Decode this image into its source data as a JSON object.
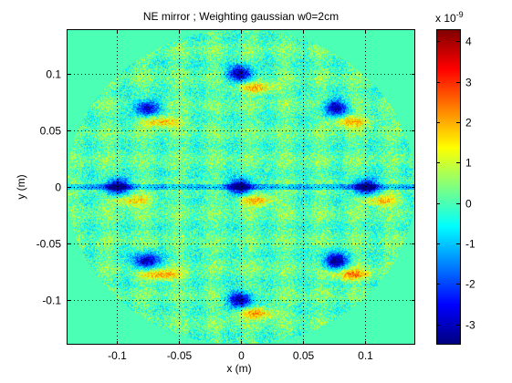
{
  "chart_data": {
    "type": "heatmap",
    "title": "NE mirror ; Weighting gaussian w0=2cm",
    "xlabel": "x (m)",
    "ylabel": "y (m)",
    "xlim": [
      -0.14,
      0.14
    ],
    "ylim": [
      -0.14,
      0.14
    ],
    "x_ticks": [
      -0.1,
      -0.05,
      0,
      0.05,
      0.1
    ],
    "x_tick_labels": [
      "-0.1",
      "-0.05",
      "0",
      "0.05",
      "0.1"
    ],
    "y_ticks": [
      -0.1,
      -0.05,
      0,
      0.05,
      0.1
    ],
    "y_tick_labels": [
      "-0.1",
      "-0.05",
      "0",
      "0.05",
      "0.1"
    ],
    "grid": true,
    "colormap": "jet",
    "colorbar": {
      "range": [
        -3.5,
        4.3
      ],
      "ticks": [
        -3,
        -2,
        -1,
        0,
        1,
        2,
        3,
        4
      ],
      "tick_labels": [
        "-3",
        "-2",
        "-1",
        "0",
        "1",
        "2",
        "3",
        "4"
      ],
      "exponent_label": "x 10",
      "exponent": "-9"
    },
    "aperture_radius": 0.14,
    "outside_value": 0,
    "features": [
      {
        "x": 0.0,
        "y": 0.1,
        "min": -3.3,
        "max": 2.2
      },
      {
        "x": -0.076,
        "y": 0.07,
        "min": -3.1,
        "max": 2.3
      },
      {
        "x": 0.076,
        "y": 0.07,
        "min": -3.1,
        "max": 2.3
      },
      {
        "x": -0.1,
        "y": 0.0,
        "min": -3.4,
        "max": 2.1
      },
      {
        "x": 0.0,
        "y": 0.0,
        "min": -3.3,
        "max": 2.2
      },
      {
        "x": 0.1,
        "y": 0.0,
        "min": -3.3,
        "max": 2.2
      },
      {
        "x": -0.076,
        "y": -0.066,
        "min": -3.2,
        "max": 2.4
      },
      {
        "x": 0.076,
        "y": -0.066,
        "min": -3.2,
        "max": 2.4
      },
      {
        "x": 0.0,
        "y": -0.1,
        "min": -3.3,
        "max": 2.3
      }
    ]
  }
}
